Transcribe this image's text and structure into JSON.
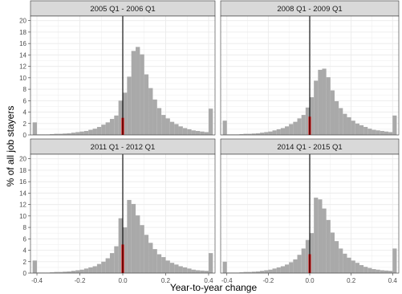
{
  "chart_data": {
    "type": "bar",
    "layout": "facet-grid 2x2",
    "ylabel": "% of all job stayers",
    "xlabel": "Year-to-year change",
    "xlim": [
      -0.43,
      0.43
    ],
    "ylim": [
      0,
      20.8
    ],
    "x_ticks": [
      -0.4,
      -0.2,
      0.0,
      0.2,
      0.4
    ],
    "x_tick_labels": [
      "-0.4",
      "-0.2",
      "0.0",
      "0.2",
      "0.4"
    ],
    "y_ticks": [
      0,
      2,
      4,
      6,
      8,
      10,
      12,
      14,
      16,
      18,
      20
    ],
    "y_tick_labels": [
      "0",
      "2",
      "4",
      "6",
      "8",
      "10",
      "12",
      "14",
      "16",
      "18",
      "20"
    ],
    "bin_width": 0.02,
    "bins_x": [
      -0.41,
      -0.39,
      -0.37,
      -0.35,
      -0.33,
      -0.31,
      -0.29,
      -0.27,
      -0.25,
      -0.23,
      -0.21,
      -0.19,
      -0.17,
      -0.15,
      -0.13,
      -0.11,
      -0.09,
      -0.07,
      -0.05,
      -0.03,
      -0.01,
      0.01,
      0.03,
      0.05,
      0.07,
      0.09,
      0.11,
      0.13,
      0.15,
      0.17,
      0.19,
      0.21,
      0.23,
      0.25,
      0.27,
      0.29,
      0.31,
      0.33,
      0.35,
      0.37,
      0.39,
      0.41
    ],
    "colors": {
      "bar": "#a9a9a9",
      "zero_bar": "#ff0000",
      "zero_line": "#000000",
      "panel_bg": "#ffffff",
      "strip_bg": "#d9d9d9",
      "grid": "#ebebeb"
    },
    "zero_line_x": 0,
    "panels": [
      {
        "title": "2005 Q1 - 2006 Q1",
        "values": [
          2.2,
          0.1,
          0.1,
          0.1,
          0.15,
          0.2,
          0.2,
          0.25,
          0.3,
          0.4,
          0.5,
          0.6,
          0.7,
          0.9,
          1.1,
          1.4,
          1.8,
          2.2,
          2.8,
          3.4,
          6.0,
          7.4,
          10.2,
          14.7,
          15.4,
          14.1,
          10.6,
          8.2,
          6.2,
          4.7,
          3.5,
          2.9,
          2.3,
          1.9,
          1.5,
          1.2,
          1.0,
          0.8,
          0.7,
          0.6,
          0.5,
          4.6
        ],
        "zero_bar_value": 3.0
      },
      {
        "title": "2008 Q1 - 2009 Q1",
        "values": [
          2.5,
          0.1,
          0.1,
          0.1,
          0.15,
          0.2,
          0.2,
          0.25,
          0.3,
          0.4,
          0.5,
          0.6,
          0.8,
          1.0,
          1.2,
          1.5,
          1.9,
          2.3,
          2.9,
          3.5,
          4.8,
          6.6,
          9.5,
          11.4,
          11.6,
          10.1,
          7.8,
          5.9,
          4.7,
          3.7,
          3.1,
          2.5,
          2.0,
          1.7,
          1.4,
          1.1,
          0.9,
          0.8,
          0.7,
          0.6,
          0.5,
          3.4
        ],
        "zero_bar_value": 3.2
      },
      {
        "title": "2011 Q1 - 2012 Q1",
        "values": [
          2.2,
          0.1,
          0.1,
          0.1,
          0.15,
          0.2,
          0.2,
          0.25,
          0.3,
          0.4,
          0.5,
          0.6,
          0.8,
          1.0,
          1.2,
          1.6,
          2.0,
          2.6,
          3.5,
          4.7,
          9.6,
          8.0,
          12.8,
          12.1,
          10.1,
          8.4,
          6.7,
          5.3,
          4.2,
          3.3,
          2.8,
          2.2,
          1.8,
          1.5,
          1.2,
          1.0,
          0.8,
          0.6,
          0.5,
          0.45,
          0.4,
          3.5
        ],
        "zero_bar_value": 5.0
      },
      {
        "title": "2014 Q1 - 2015 Q1",
        "values": [
          2.0,
          0.1,
          0.1,
          0.1,
          0.15,
          0.2,
          0.2,
          0.25,
          0.3,
          0.4,
          0.5,
          0.6,
          0.8,
          1.0,
          1.2,
          1.5,
          1.9,
          2.4,
          3.2,
          4.3,
          5.8,
          7.0,
          13.2,
          12.9,
          11.3,
          9.3,
          7.1,
          5.6,
          4.3,
          3.4,
          2.7,
          2.2,
          1.8,
          1.4,
          1.1,
          0.9,
          0.7,
          0.6,
          0.5,
          0.45,
          0.4,
          4.3
        ],
        "zero_bar_value": 3.3
      }
    ]
  }
}
